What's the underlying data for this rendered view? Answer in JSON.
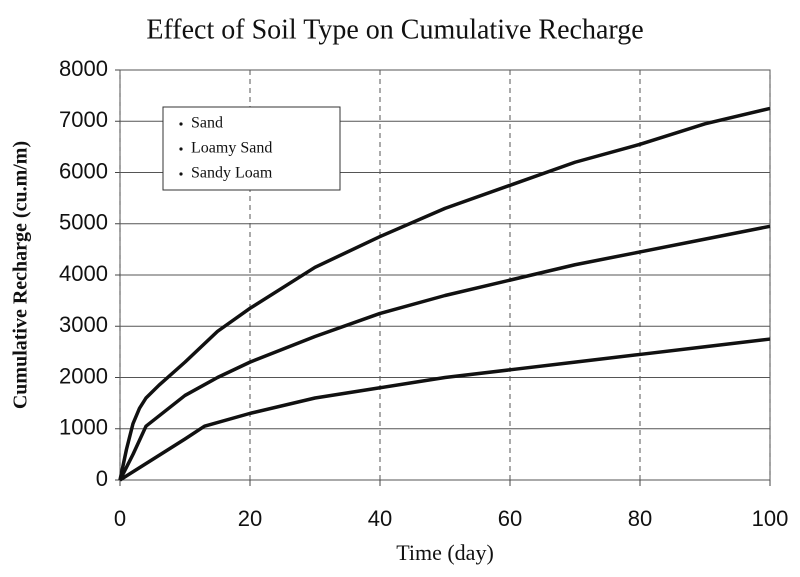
{
  "chart_data": {
    "type": "line",
    "title": "Effect of Soil Type on Cumulative Recharge",
    "xlabel": "Time (day)",
    "ylabel": "Cumulative Recharge (cu.m/m)",
    "xlim": [
      0,
      100
    ],
    "xticks": [
      0,
      20,
      40,
      60,
      80,
      100
    ],
    "ylim": [
      0,
      8000
    ],
    "yticks": [
      0,
      1000,
      2000,
      3000,
      4000,
      5000,
      6000,
      7000,
      8000
    ],
    "grid": true,
    "legend": "upper left",
    "series": [
      {
        "name": "Sand",
        "color": "#111111",
        "x": [
          0,
          1,
          2,
          3,
          4,
          6,
          10,
          15,
          20,
          30,
          40,
          50,
          60,
          70,
          80,
          90,
          100
        ],
        "values": [
          0,
          600,
          1100,
          1400,
          1600,
          1850,
          2300,
          2900,
          3350,
          4150,
          4750,
          5300,
          5750,
          6200,
          6550,
          6950,
          7250
        ]
      },
      {
        "name": "Loamy Sand",
        "color": "#111111",
        "x": [
          0,
          2,
          4,
          6,
          10,
          15,
          20,
          30,
          40,
          50,
          60,
          70,
          80,
          90,
          100
        ],
        "values": [
          0,
          500,
          1050,
          1250,
          1650,
          2000,
          2300,
          2800,
          3250,
          3600,
          3900,
          4200,
          4450,
          4700,
          4950
        ]
      },
      {
        "name": "Sandy Loam",
        "color": "#111111",
        "x": [
          0,
          5,
          10,
          13,
          20,
          30,
          40,
          50,
          60,
          70,
          80,
          90,
          100
        ],
        "values": [
          0,
          400,
          800,
          1050,
          1300,
          1600,
          1800,
          2000,
          2150,
          2300,
          2450,
          2600,
          2750
        ]
      }
    ]
  }
}
